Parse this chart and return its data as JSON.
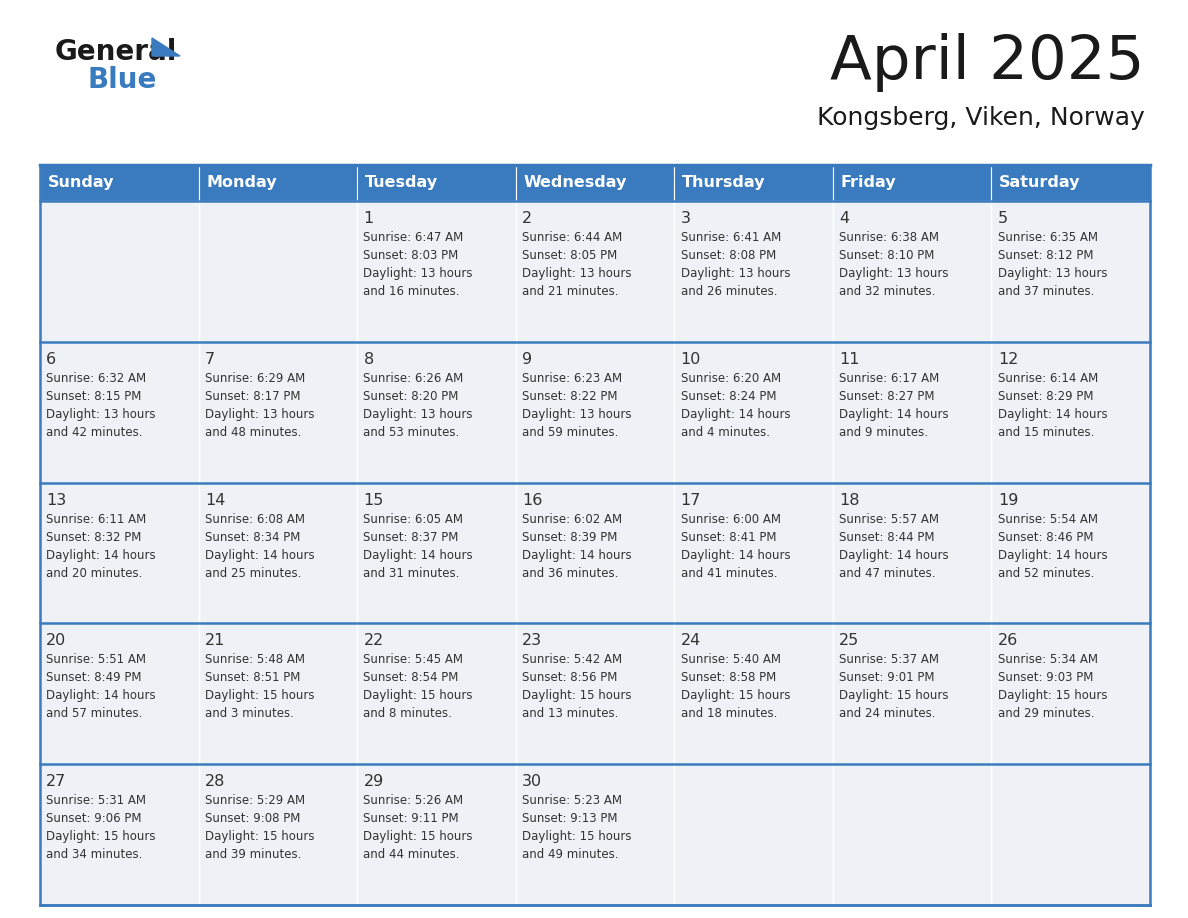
{
  "title": "April 2025",
  "subtitle": "Kongsberg, Viken, Norway",
  "header_bg_color": "#3a7bbf",
  "header_text_color": "#ffffff",
  "cell_bg_color": "#eef2f7",
  "border_color": "#3a7bbf",
  "text_color": "#333333",
  "day_headers": [
    "Sunday",
    "Monday",
    "Tuesday",
    "Wednesday",
    "Thursday",
    "Friday",
    "Saturday"
  ],
  "weeks": [
    [
      {
        "day": "",
        "info": ""
      },
      {
        "day": "",
        "info": ""
      },
      {
        "day": "1",
        "info": "Sunrise: 6:47 AM\nSunset: 8:03 PM\nDaylight: 13 hours\nand 16 minutes."
      },
      {
        "day": "2",
        "info": "Sunrise: 6:44 AM\nSunset: 8:05 PM\nDaylight: 13 hours\nand 21 minutes."
      },
      {
        "day": "3",
        "info": "Sunrise: 6:41 AM\nSunset: 8:08 PM\nDaylight: 13 hours\nand 26 minutes."
      },
      {
        "day": "4",
        "info": "Sunrise: 6:38 AM\nSunset: 8:10 PM\nDaylight: 13 hours\nand 32 minutes."
      },
      {
        "day": "5",
        "info": "Sunrise: 6:35 AM\nSunset: 8:12 PM\nDaylight: 13 hours\nand 37 minutes."
      }
    ],
    [
      {
        "day": "6",
        "info": "Sunrise: 6:32 AM\nSunset: 8:15 PM\nDaylight: 13 hours\nand 42 minutes."
      },
      {
        "day": "7",
        "info": "Sunrise: 6:29 AM\nSunset: 8:17 PM\nDaylight: 13 hours\nand 48 minutes."
      },
      {
        "day": "8",
        "info": "Sunrise: 6:26 AM\nSunset: 8:20 PM\nDaylight: 13 hours\nand 53 minutes."
      },
      {
        "day": "9",
        "info": "Sunrise: 6:23 AM\nSunset: 8:22 PM\nDaylight: 13 hours\nand 59 minutes."
      },
      {
        "day": "10",
        "info": "Sunrise: 6:20 AM\nSunset: 8:24 PM\nDaylight: 14 hours\nand 4 minutes."
      },
      {
        "day": "11",
        "info": "Sunrise: 6:17 AM\nSunset: 8:27 PM\nDaylight: 14 hours\nand 9 minutes."
      },
      {
        "day": "12",
        "info": "Sunrise: 6:14 AM\nSunset: 8:29 PM\nDaylight: 14 hours\nand 15 minutes."
      }
    ],
    [
      {
        "day": "13",
        "info": "Sunrise: 6:11 AM\nSunset: 8:32 PM\nDaylight: 14 hours\nand 20 minutes."
      },
      {
        "day": "14",
        "info": "Sunrise: 6:08 AM\nSunset: 8:34 PM\nDaylight: 14 hours\nand 25 minutes."
      },
      {
        "day": "15",
        "info": "Sunrise: 6:05 AM\nSunset: 8:37 PM\nDaylight: 14 hours\nand 31 minutes."
      },
      {
        "day": "16",
        "info": "Sunrise: 6:02 AM\nSunset: 8:39 PM\nDaylight: 14 hours\nand 36 minutes."
      },
      {
        "day": "17",
        "info": "Sunrise: 6:00 AM\nSunset: 8:41 PM\nDaylight: 14 hours\nand 41 minutes."
      },
      {
        "day": "18",
        "info": "Sunrise: 5:57 AM\nSunset: 8:44 PM\nDaylight: 14 hours\nand 47 minutes."
      },
      {
        "day": "19",
        "info": "Sunrise: 5:54 AM\nSunset: 8:46 PM\nDaylight: 14 hours\nand 52 minutes."
      }
    ],
    [
      {
        "day": "20",
        "info": "Sunrise: 5:51 AM\nSunset: 8:49 PM\nDaylight: 14 hours\nand 57 minutes."
      },
      {
        "day": "21",
        "info": "Sunrise: 5:48 AM\nSunset: 8:51 PM\nDaylight: 15 hours\nand 3 minutes."
      },
      {
        "day": "22",
        "info": "Sunrise: 5:45 AM\nSunset: 8:54 PM\nDaylight: 15 hours\nand 8 minutes."
      },
      {
        "day": "23",
        "info": "Sunrise: 5:42 AM\nSunset: 8:56 PM\nDaylight: 15 hours\nand 13 minutes."
      },
      {
        "day": "24",
        "info": "Sunrise: 5:40 AM\nSunset: 8:58 PM\nDaylight: 15 hours\nand 18 minutes."
      },
      {
        "day": "25",
        "info": "Sunrise: 5:37 AM\nSunset: 9:01 PM\nDaylight: 15 hours\nand 24 minutes."
      },
      {
        "day": "26",
        "info": "Sunrise: 5:34 AM\nSunset: 9:03 PM\nDaylight: 15 hours\nand 29 minutes."
      }
    ],
    [
      {
        "day": "27",
        "info": "Sunrise: 5:31 AM\nSunset: 9:06 PM\nDaylight: 15 hours\nand 34 minutes."
      },
      {
        "day": "28",
        "info": "Sunrise: 5:29 AM\nSunset: 9:08 PM\nDaylight: 15 hours\nand 39 minutes."
      },
      {
        "day": "29",
        "info": "Sunrise: 5:26 AM\nSunset: 9:11 PM\nDaylight: 15 hours\nand 44 minutes."
      },
      {
        "day": "30",
        "info": "Sunrise: 5:23 AM\nSunset: 9:13 PM\nDaylight: 15 hours\nand 49 minutes."
      },
      {
        "day": "",
        "info": ""
      },
      {
        "day": "",
        "info": ""
      },
      {
        "day": "",
        "info": ""
      }
    ]
  ]
}
